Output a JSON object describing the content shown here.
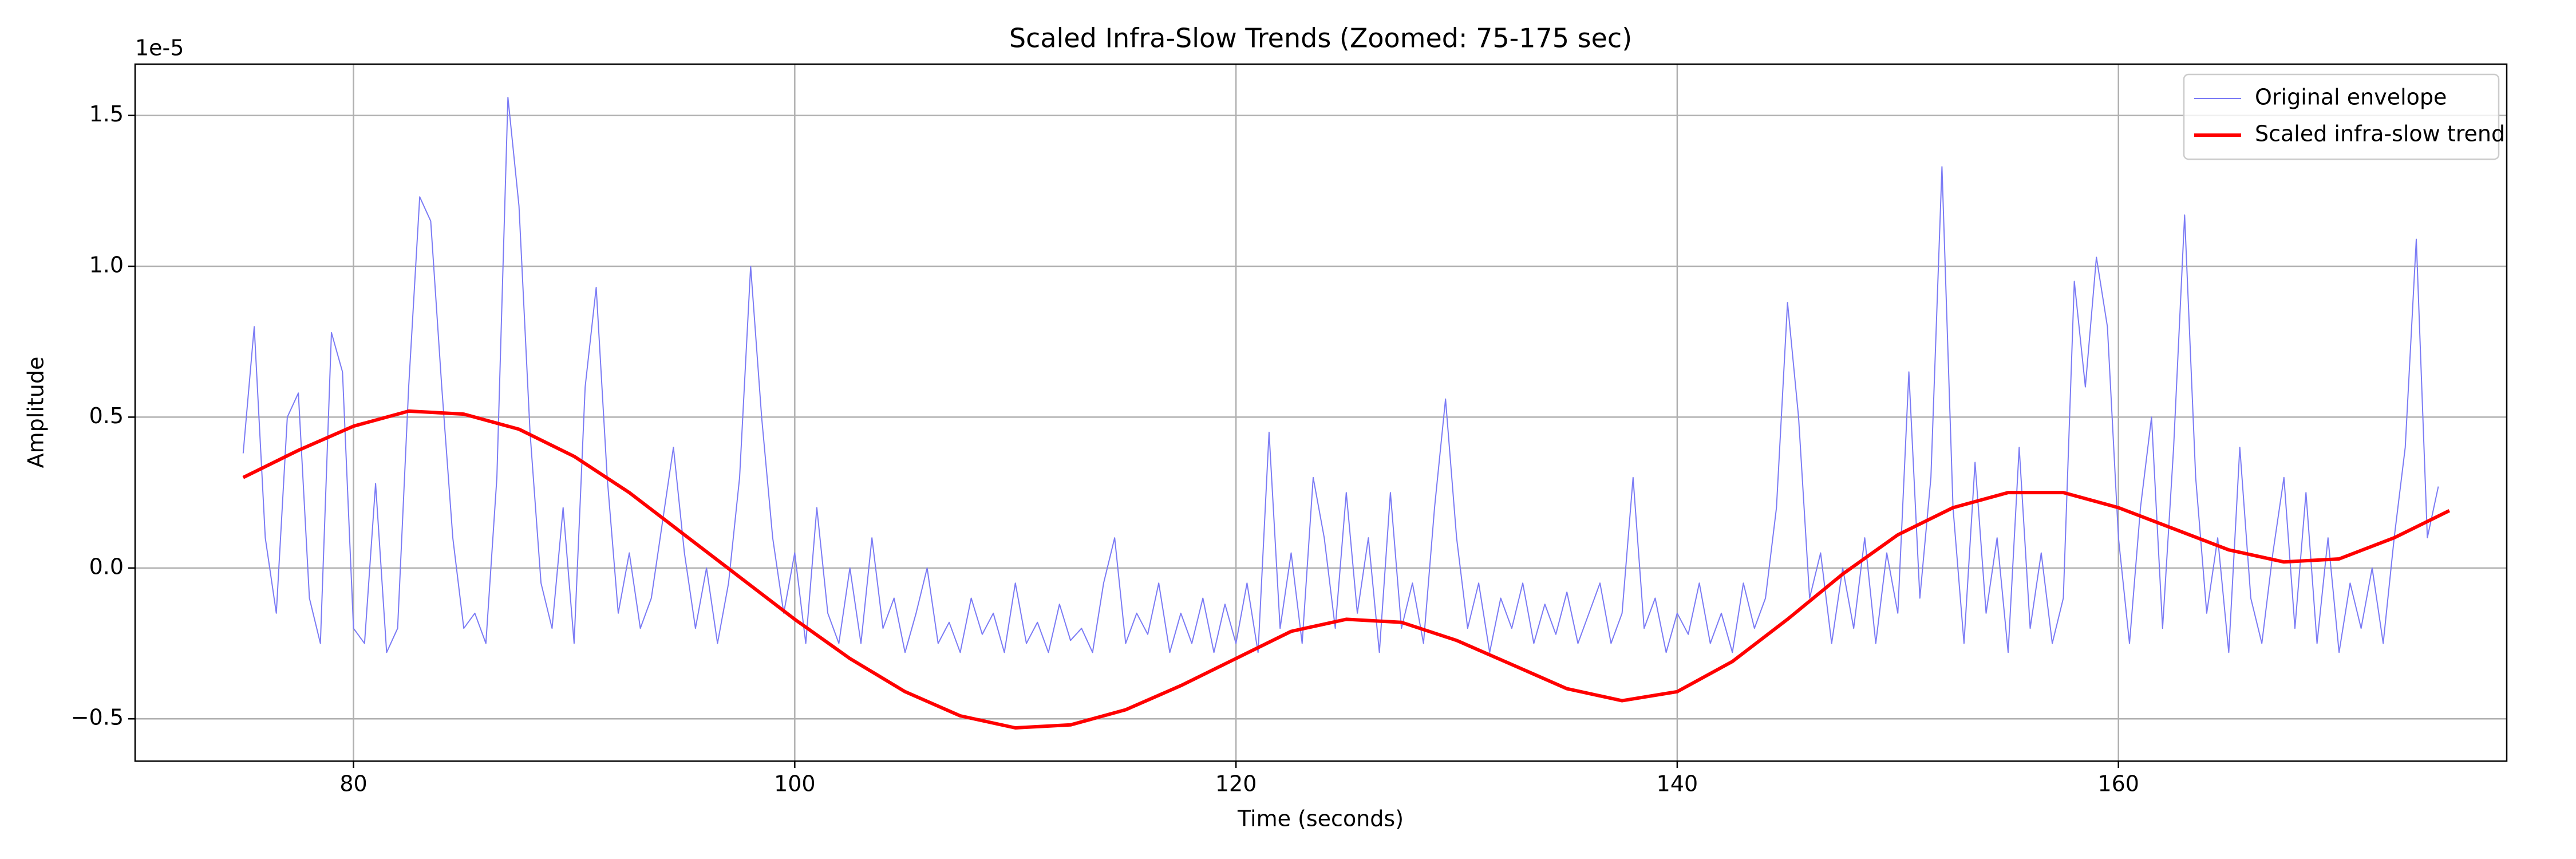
{
  "chart_data": {
    "type": "line",
    "title": "Scaled Infra-Slow Trends (Zoomed: 75-175 sec)",
    "x_label": "Time (seconds)",
    "y_label": "Amplitude",
    "y_offset_label": "1e-5",
    "xlim": [
      70.1,
      177.6
    ],
    "xticks": [
      80,
      100,
      120,
      140,
      160
    ],
    "ylim": [
      -0.64,
      1.67
    ],
    "yticks": [
      {
        "value": -0.5,
        "label": "−0.5"
      },
      {
        "value": 0,
        "label": "0.0"
      },
      {
        "value": 0.5,
        "label": "0.5"
      },
      {
        "value": 1,
        "label": "1.0"
      },
      {
        "value": 1.5,
        "label": "1.5"
      }
    ],
    "grid": true,
    "legend": "upper right",
    "series": [
      {
        "name": "Original envelope",
        "color": "#7b7bf5",
        "width": 2,
        "x": [
          75,
          75.5,
          76,
          76.5,
          77,
          77.5,
          78,
          78.5,
          79,
          79.5,
          80,
          80.5,
          81,
          81.5,
          82,
          82.5,
          83,
          83.5,
          84,
          84.5,
          85,
          85.5,
          86,
          86.5,
          87,
          87.5,
          88,
          88.5,
          89,
          89.5,
          90,
          90.5,
          91,
          91.5,
          92,
          92.5,
          93,
          93.5,
          94,
          94.5,
          95,
          95.5,
          96,
          96.5,
          97,
          97.5,
          98,
          98.5,
          99,
          99.5,
          100,
          100.5,
          101,
          101.5,
          102,
          102.5,
          103,
          103.5,
          104,
          104.5,
          105,
          105.5,
          106,
          106.5,
          107,
          107.5,
          108,
          108.5,
          109,
          109.5,
          110,
          110.5,
          111,
          111.5,
          112,
          112.5,
          113,
          113.5,
          114,
          114.5,
          115,
          115.5,
          116,
          116.5,
          117,
          117.5,
          118,
          118.5,
          119,
          119.5,
          120,
          120.5,
          121,
          121.5,
          122,
          122.5,
          123,
          123.5,
          124,
          124.5,
          125,
          125.5,
          126,
          126.5,
          127,
          127.5,
          128,
          128.5,
          129,
          129.5,
          130,
          130.5,
          131,
          131.5,
          132,
          132.5,
          133,
          133.5,
          134,
          134.5,
          135,
          135.5,
          136,
          136.5,
          137,
          137.5,
          138,
          138.5,
          139,
          139.5,
          140,
          140.5,
          141,
          141.5,
          142,
          142.5,
          143,
          143.5,
          144,
          144.5,
          145,
          145.5,
          146,
          146.5,
          147,
          147.5,
          148,
          148.5,
          149,
          149.5,
          150,
          150.5,
          151,
          151.5,
          152,
          152.5,
          153,
          153.5,
          154,
          154.5,
          155,
          155.5,
          156,
          156.5,
          157,
          157.5,
          158,
          158.5,
          159,
          159.5,
          160,
          160.5,
          161,
          161.5,
          162,
          162.5,
          163,
          163.5,
          164,
          164.5,
          165,
          165.5,
          166,
          166.5,
          167,
          167.5,
          168,
          168.5,
          169,
          169.5,
          170,
          170.5,
          171,
          171.5,
          172,
          172.5,
          173,
          173.5,
          174,
          174.5
        ],
        "values": [
          0.38,
          0.8,
          0.1,
          -0.15,
          0.5,
          0.58,
          -0.1,
          -0.25,
          0.78,
          0.65,
          -0.2,
          -0.25,
          0.28,
          -0.28,
          -0.2,
          0.6,
          1.23,
          1.15,
          0.6,
          0.1,
          -0.2,
          -0.15,
          -0.25,
          0.3,
          1.56,
          1.2,
          0.45,
          -0.05,
          -0.2,
          0.2,
          -0.25,
          0.6,
          0.93,
          0.3,
          -0.15,
          0.05,
          -0.2,
          -0.1,
          0.15,
          0.4,
          0.05,
          -0.2,
          0,
          -0.25,
          -0.05,
          0.3,
          1,
          0.5,
          0.1,
          -0.15,
          0.05,
          -0.25,
          0.2,
          -0.15,
          -0.25,
          0,
          -0.25,
          0.1,
          -0.2,
          -0.1,
          -0.28,
          -0.15,
          0,
          -0.25,
          -0.18,
          -0.28,
          -0.1,
          -0.22,
          -0.15,
          -0.28,
          -0.05,
          -0.25,
          -0.18,
          -0.28,
          -0.12,
          -0.24,
          -0.2,
          -0.28,
          -0.05,
          0.1,
          -0.25,
          -0.15,
          -0.22,
          -0.05,
          -0.28,
          -0.15,
          -0.25,
          -0.1,
          -0.28,
          -0.12,
          -0.25,
          -0.05,
          -0.28,
          0.45,
          -0.2,
          0.05,
          -0.25,
          0.3,
          0.1,
          -0.2,
          0.25,
          -0.15,
          0.1,
          -0.28,
          0.25,
          -0.2,
          -0.05,
          -0.25,
          0.2,
          0.56,
          0.1,
          -0.2,
          -0.05,
          -0.28,
          -0.1,
          -0.2,
          -0.05,
          -0.25,
          -0.12,
          -0.22,
          -0.08,
          -0.25,
          -0.15,
          -0.05,
          -0.25,
          -0.15,
          0.3,
          -0.2,
          -0.1,
          -0.28,
          -0.15,
          -0.22,
          -0.05,
          -0.25,
          -0.15,
          -0.28,
          -0.05,
          -0.2,
          -0.1,
          0.2,
          0.88,
          0.5,
          -0.1,
          0.05,
          -0.25,
          0,
          -0.2,
          0.1,
          -0.25,
          0.05,
          -0.15,
          0.65,
          -0.1,
          0.3,
          1.33,
          0.2,
          -0.25,
          0.35,
          -0.15,
          0.1,
          -0.28,
          0.4,
          -0.2,
          0.05,
          -0.25,
          -0.1,
          0.95,
          0.6,
          1.03,
          0.8,
          0.1,
          -0.25,
          0.2,
          0.5,
          -0.2,
          0.4,
          1.17,
          0.3,
          -0.15,
          0.1,
          -0.28,
          0.4,
          -0.1,
          -0.25,
          0.05,
          0.3,
          -0.2,
          0.25,
          -0.25,
          0.1,
          -0.28,
          -0.05,
          -0.2,
          0,
          -0.25,
          0.1,
          0.4,
          1.09,
          0.1,
          0.27
        ]
      },
      {
        "name": "Scaled infra-slow trend",
        "color": "#ff0000",
        "width": 6,
        "x": [
          75,
          77.5,
          80,
          82.5,
          85,
          87.5,
          90,
          92.5,
          95,
          97.5,
          100,
          102.5,
          105,
          107.5,
          110,
          112.5,
          115,
          117.5,
          120,
          122.5,
          125,
          127.5,
          130,
          132.5,
          135,
          137.5,
          140,
          142.5,
          145,
          147.5,
          150,
          152.5,
          155,
          157.5,
          160,
          162.5,
          165,
          167.5,
          170,
          172.5,
          175
        ],
        "values": [
          0.3,
          0.39,
          0.47,
          0.52,
          0.51,
          0.46,
          0.37,
          0.25,
          0.11,
          -0.03,
          -0.17,
          -0.3,
          -0.41,
          -0.49,
          -0.53,
          -0.52,
          -0.47,
          -0.39,
          -0.3,
          -0.21,
          -0.17,
          -0.18,
          -0.24,
          -0.32,
          -0.4,
          -0.44,
          -0.41,
          -0.31,
          -0.17,
          -0.02,
          0.11,
          0.2,
          0.25,
          0.25,
          0.2,
          0.13,
          0.06,
          0.02,
          0.03,
          0.1,
          0.19
        ]
      }
    ]
  }
}
